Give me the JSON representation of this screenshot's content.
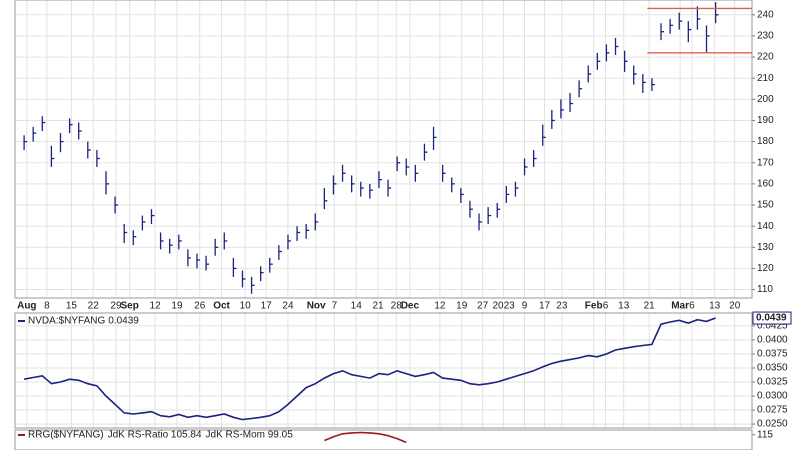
{
  "chart_data": [
    {
      "type": "ohlc",
      "color": "#1a237e",
      "high": [
        183,
        187,
        192,
        178,
        184,
        191,
        189,
        180,
        176,
        166,
        154,
        141,
        138,
        145,
        148,
        137,
        134,
        136,
        129,
        127,
        126,
        134,
        137,
        125,
        119,
        116,
        121,
        125,
        131,
        136,
        140,
        141,
        146,
        158,
        164,
        169,
        164,
        161,
        160,
        166,
        162,
        173,
        172,
        169,
        179,
        187,
        169,
        163,
        158,
        152,
        146,
        149,
        151,
        159,
        161,
        172,
        176,
        188,
        195,
        200,
        203,
        209,
        216,
        222,
        226,
        229,
        223,
        216,
        212,
        210,
        236,
        238,
        241,
        237,
        244,
        235,
        246
      ],
      "low": [
        176,
        180,
        185,
        168,
        175,
        184,
        181,
        172,
        168,
        155,
        146,
        132,
        131,
        138,
        141,
        129,
        127,
        129,
        121,
        120,
        119,
        126,
        129,
        116,
        111,
        108,
        114,
        118,
        124,
        129,
        133,
        134,
        138,
        148,
        155,
        161,
        156,
        154,
        153,
        158,
        154,
        166,
        164,
        161,
        171,
        176,
        161,
        156,
        151,
        144,
        138,
        141,
        144,
        151,
        154,
        164,
        168,
        178,
        186,
        191,
        194,
        201,
        208,
        214,
        218,
        221,
        213,
        207,
        203,
        204,
        228,
        231,
        233,
        227,
        233,
        222,
        236
      ],
      "close": [
        180,
        184,
        189,
        172,
        180,
        188,
        185,
        176,
        172,
        160,
        150,
        137,
        135,
        142,
        145,
        133,
        131,
        133,
        125,
        124,
        122,
        130,
        133,
        120,
        115,
        112,
        118,
        122,
        128,
        133,
        137,
        138,
        142,
        152,
        160,
        165,
        160,
        158,
        157,
        162,
        158,
        170,
        168,
        165,
        175,
        182,
        165,
        160,
        155,
        148,
        142,
        145,
        148,
        155,
        158,
        168,
        172,
        182,
        190,
        195,
        198,
        205,
        212,
        218,
        222,
        225,
        218,
        212,
        208,
        207,
        232,
        235,
        237,
        233,
        238,
        230,
        240
      ],
      "xlim": [
        -1,
        80
      ],
      "xticks": [
        {
          "value": 0.3,
          "label": "Aug"
        },
        {
          "value": 2.5,
          "label": "8"
        },
        {
          "value": 5.2,
          "label": "15"
        },
        {
          "value": 7.6,
          "label": "22"
        },
        {
          "value": 10.1,
          "label": "29"
        },
        {
          "value": 11.6,
          "label": "Sep"
        },
        {
          "value": 14.4,
          "label": "12"
        },
        {
          "value": 16.8,
          "label": "19"
        },
        {
          "value": 19.3,
          "label": "26"
        },
        {
          "value": 21.7,
          "label": "Oct"
        },
        {
          "value": 24.3,
          "label": "10"
        },
        {
          "value": 26.6,
          "label": "17"
        },
        {
          "value": 29.0,
          "label": "24"
        },
        {
          "value": 32.1,
          "label": "Nov"
        },
        {
          "value": 34.1,
          "label": "7"
        },
        {
          "value": 36.5,
          "label": "14"
        },
        {
          "value": 38.9,
          "label": "21"
        },
        {
          "value": 40.9,
          "label": "28"
        },
        {
          "value": 42.4,
          "label": "Dec"
        },
        {
          "value": 45.7,
          "label": "12"
        },
        {
          "value": 48.1,
          "label": "19"
        },
        {
          "value": 50.4,
          "label": "27"
        },
        {
          "value": 52.7,
          "label": "2023"
        },
        {
          "value": 55.0,
          "label": "9"
        },
        {
          "value": 57.2,
          "label": "17"
        },
        {
          "value": 59.1,
          "label": "23"
        },
        {
          "value": 62.6,
          "label": "Feb"
        },
        {
          "value": 63.9,
          "label": "6"
        },
        {
          "value": 65.9,
          "label": "13"
        },
        {
          "value": 68.7,
          "label": "21"
        },
        {
          "value": 72.1,
          "label": "Mar"
        },
        {
          "value": 73.4,
          "label": "6"
        },
        {
          "value": 75.9,
          "label": "13"
        },
        {
          "value": 78.1,
          "label": "20"
        }
      ],
      "ylim": [
        106,
        247
      ],
      "yticks": [
        110,
        120,
        130,
        140,
        150,
        160,
        170,
        180,
        190,
        200,
        210,
        220,
        230,
        240
      ],
      "grid": true,
      "hlines": [
        243,
        222
      ],
      "hline_color": "#e06050",
      "hline_from": 68.5
    },
    {
      "type": "line",
      "series": [
        {
          "name": "NVDA:$NYFANG",
          "color": "#1a237e",
          "values": [
            0.033,
            0.0333,
            0.0336,
            0.0322,
            0.0325,
            0.033,
            0.0328,
            0.0322,
            0.0318,
            0.03,
            0.0285,
            0.027,
            0.0268,
            0.027,
            0.0272,
            0.0265,
            0.0263,
            0.0267,
            0.0262,
            0.0265,
            0.0262,
            0.0265,
            0.0268,
            0.0262,
            0.0258,
            0.026,
            0.0262,
            0.0265,
            0.0272,
            0.0285,
            0.03,
            0.0315,
            0.0322,
            0.0332,
            0.034,
            0.0345,
            0.0338,
            0.0335,
            0.0332,
            0.034,
            0.0338,
            0.0345,
            0.034,
            0.0335,
            0.0338,
            0.0342,
            0.0332,
            0.033,
            0.0328,
            0.0322,
            0.032,
            0.0322,
            0.0325,
            0.033,
            0.0335,
            0.034,
            0.0345,
            0.0352,
            0.0358,
            0.0362,
            0.0365,
            0.0368,
            0.0372,
            0.037,
            0.0375,
            0.0382,
            0.0385,
            0.0388,
            0.039,
            0.0392,
            0.0428,
            0.0432,
            0.0435,
            0.043,
            0.0436,
            0.0433,
            0.0439
          ]
        }
      ],
      "last_label": "0.0439",
      "xlim": [
        -1,
        80
      ],
      "ylim": [
        0.0243,
        0.0448
      ],
      "yticks": [
        0.0425,
        {
          "value": 0.04,
          "label": "0.0400"
        },
        0.0375,
        {
          "value": 0.035,
          "label": "0.0350"
        },
        0.0325,
        {
          "value": 0.03,
          "label": "0.0300"
        },
        0.0275,
        {
          "value": 0.025,
          "label": "0.0250"
        }
      ],
      "grid": true
    },
    {
      "type": "line",
      "legend": [
        "RRG($NYFANG)",
        "JdK RS-Ratio 105.84",
        "JdK RS-Mom 99.05"
      ],
      "legend_colors": [
        "#8b1a1a",
        "#d02020",
        "#2a8a2a"
      ],
      "series": [
        {
          "color": "#a01818",
          "values": [
            null,
            null,
            null,
            null,
            null,
            null,
            null,
            null,
            null,
            null,
            null,
            null,
            null,
            null,
            null,
            null,
            null,
            null,
            null,
            null,
            null,
            null,
            null,
            null,
            null,
            null,
            null,
            null,
            null,
            null,
            null,
            null,
            null,
            112,
            114,
            115.5,
            116,
            116.2,
            116,
            115.5,
            114.5,
            113,
            111,
            null,
            null,
            null,
            null,
            null,
            null,
            null,
            null,
            null,
            null,
            null,
            null,
            null,
            null,
            null,
            null,
            null,
            null,
            null,
            null,
            null,
            null,
            null,
            null,
            null,
            null,
            null,
            null,
            null,
            null,
            null,
            null,
            null,
            null
          ]
        }
      ],
      "xlim": [
        -1,
        80
      ],
      "ylim": [
        107,
        117.5
      ],
      "yticks": [
        115
      ]
    }
  ]
}
